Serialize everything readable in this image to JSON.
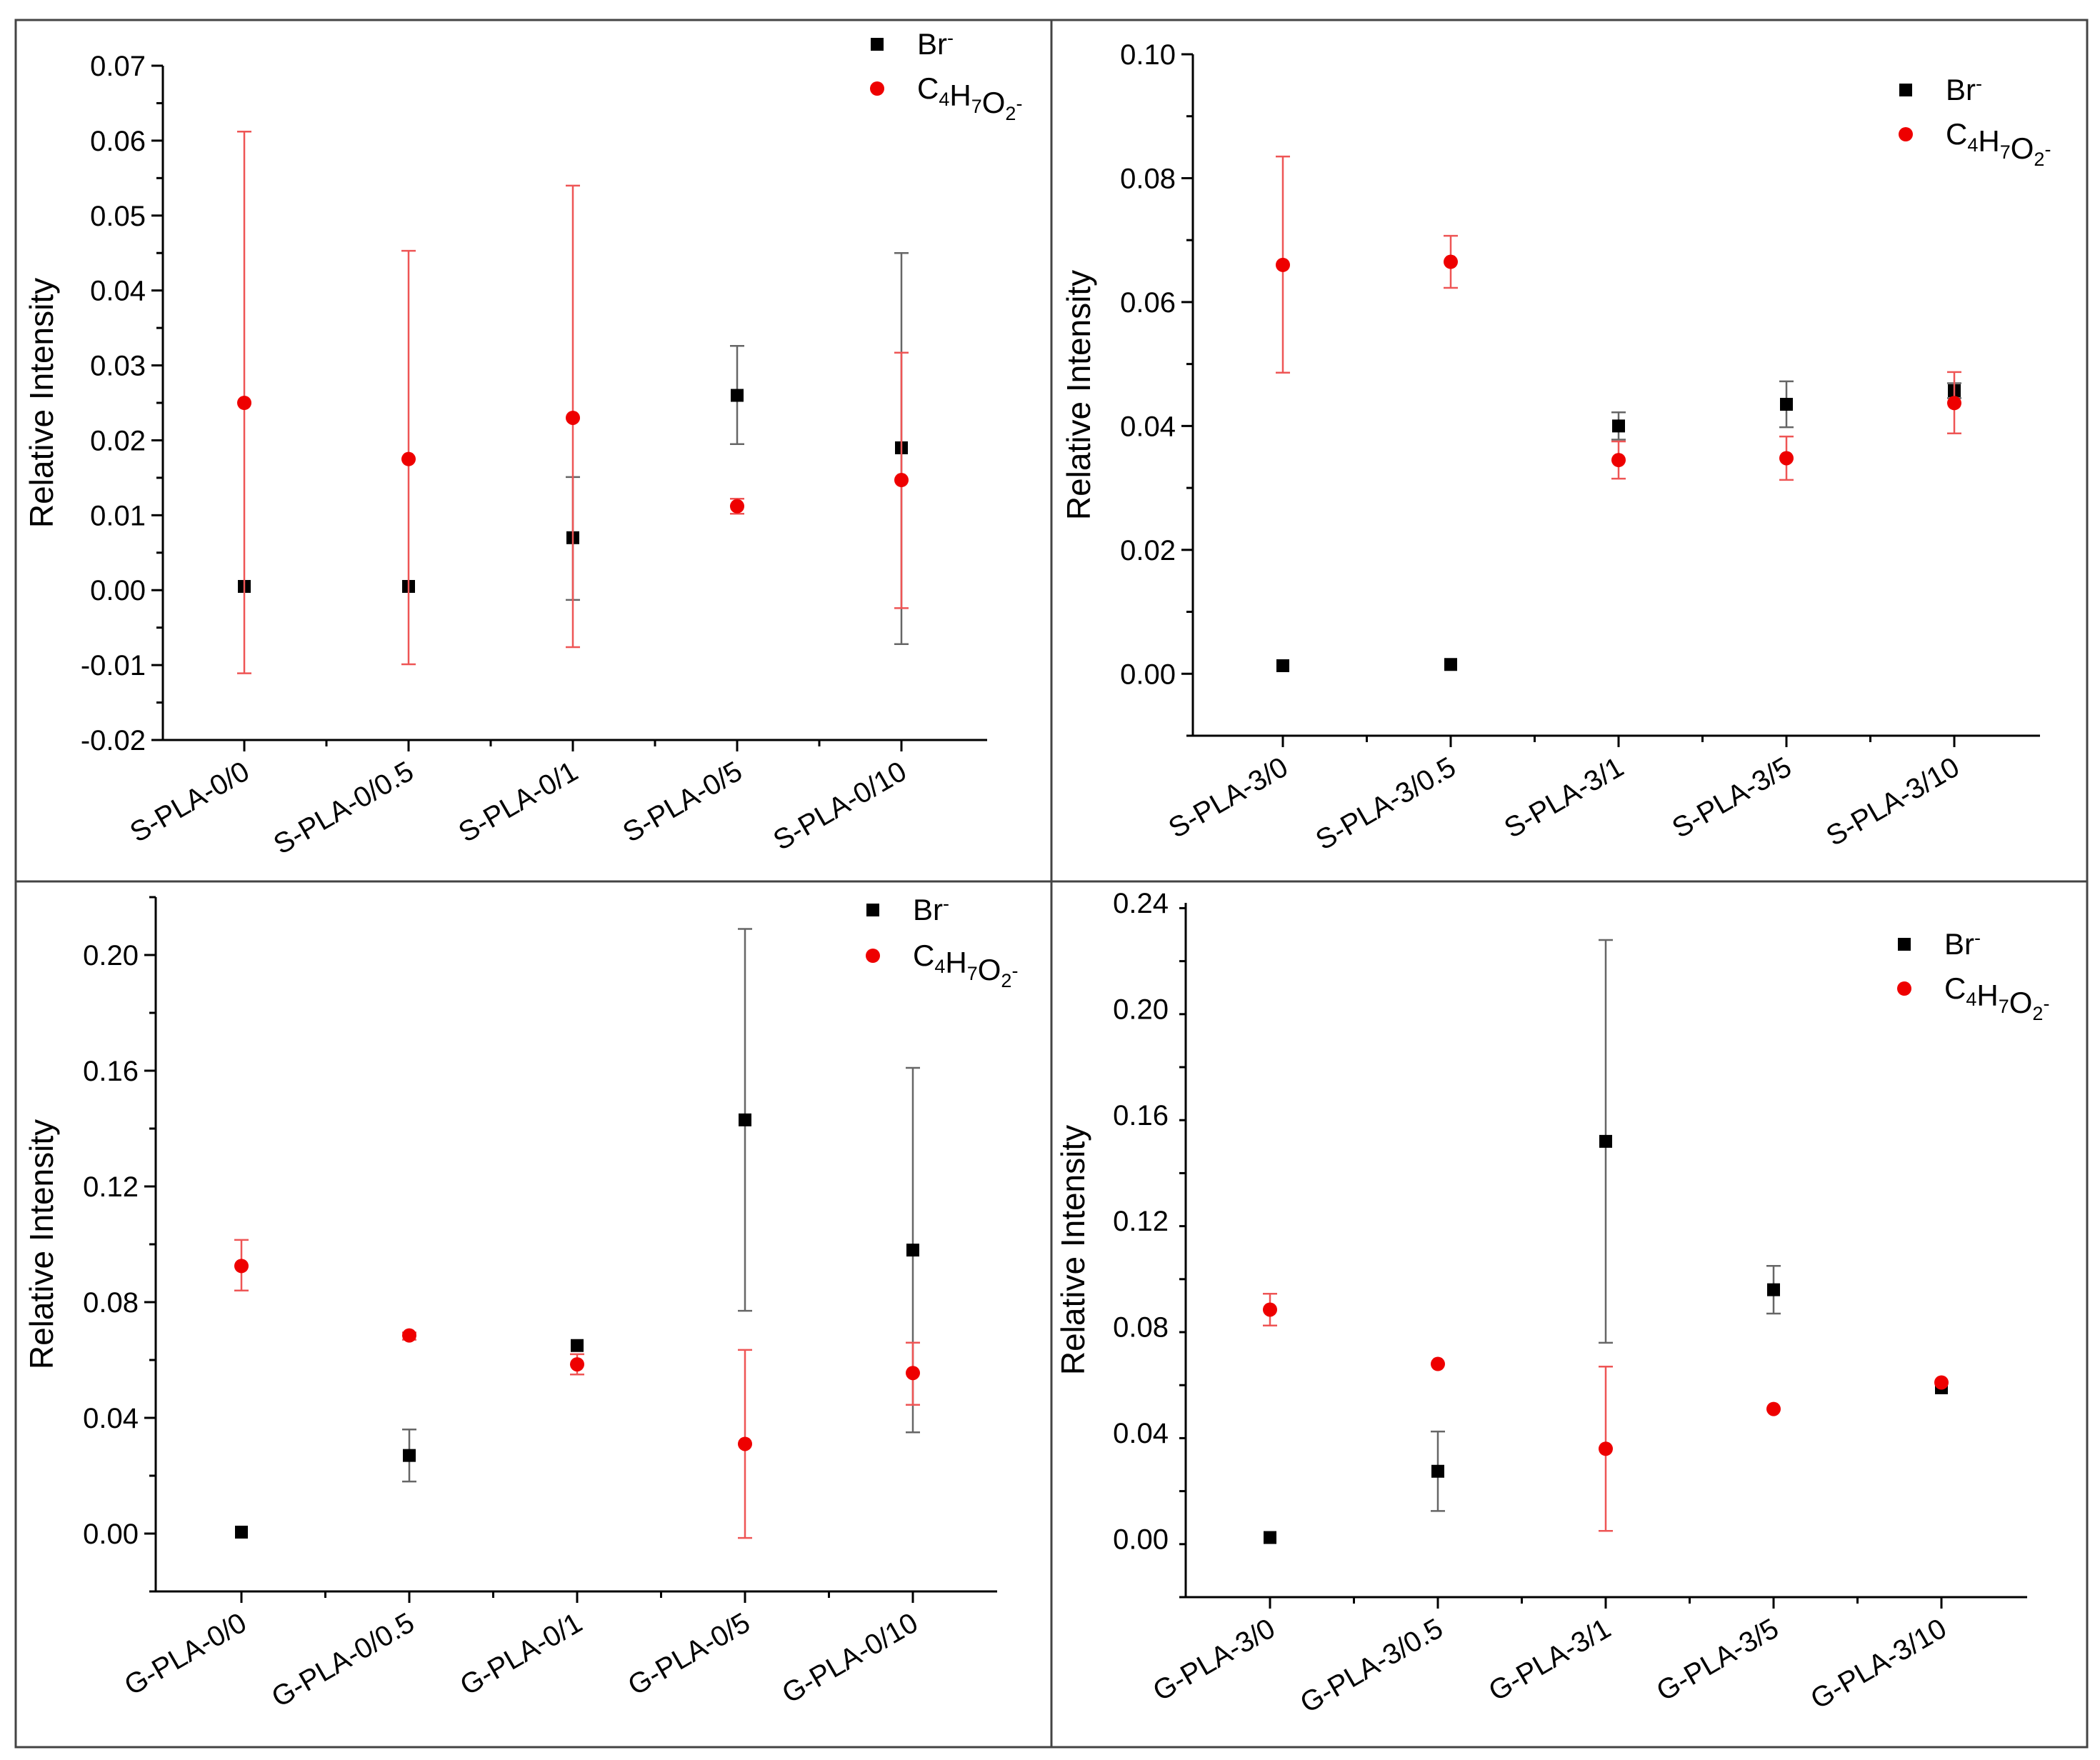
{
  "chart_data": [
    {
      "type": "scatter",
      "title": "",
      "xlabel": "",
      "ylabel": "Relative Intensity",
      "ylim": [
        -0.02,
        0.07
      ],
      "yticks": [
        -0.02,
        -0.01,
        0.0,
        0.01,
        0.02,
        0.03,
        0.04,
        0.05,
        0.06,
        0.07
      ],
      "tick_labels": [
        "-0.02",
        "-0.01",
        "0.00",
        "0.01",
        "0.02",
        "0.03",
        "0.04",
        "0.05",
        "0.06",
        "0.07"
      ],
      "categories": [
        "S-PLA-0/0",
        "S-PLA-0/0.5",
        "S-PLA-0/1",
        "S-PLA-0/5",
        "S-PLA-0/10"
      ],
      "legend_position": "top-right",
      "series": [
        {
          "name": "Br-",
          "legend": {
            "base": "Br",
            "parts": [
              {
                "t": "-",
                "s": "sup"
              }
            ]
          },
          "marker": "square",
          "color": "#000000",
          "errcolor": "#666666",
          "values": [
            0.0005,
            0.0005,
            0.007,
            0.026,
            0.019
          ],
          "err_low": [
            0.0,
            0.0,
            -0.0013,
            0.0195,
            -0.0072
          ],
          "err_high": [
            0.0,
            0.0,
            0.0151,
            0.0326,
            0.045
          ]
        },
        {
          "name": "C4H7O2-",
          "legend": {
            "base": "C",
            "parts": [
              {
                "t": "4",
                "s": "sub"
              },
              {
                "t": "H",
                "s": ""
              },
              {
                "t": "7",
                "s": "sub"
              },
              {
                "t": "O",
                "s": ""
              },
              {
                "t": "2",
                "s": "sub"
              },
              {
                "t": "-",
                "s": "sup"
              }
            ]
          },
          "marker": "circle",
          "color": "#ee0000",
          "errcolor": "#ee5555",
          "values": [
            0.025,
            0.0175,
            0.023,
            0.0112,
            0.0147
          ],
          "err_low": [
            -0.0111,
            -0.0099,
            -0.0076,
            0.0102,
            -0.0024
          ],
          "err_high": [
            0.0612,
            0.0453,
            0.054,
            0.0122,
            0.0317
          ]
        }
      ]
    },
    {
      "type": "scatter",
      "title": "",
      "xlabel": "",
      "ylabel": "Relative Intensity",
      "ylim": [
        -0.01,
        0.1
      ],
      "yticks": [
        0.0,
        0.02,
        0.04,
        0.06,
        0.08,
        0.1
      ],
      "tick_labels": [
        "0.00",
        "0.02",
        "0.04",
        "0.06",
        "0.08",
        "0.10"
      ],
      "categories": [
        "S-PLA-3/0",
        "S-PLA-3/0.5",
        "S-PLA-3/1",
        "S-PLA-3/5",
        "S-PLA-3/10"
      ],
      "legend_position": "top-right",
      "series": [
        {
          "name": "Br-",
          "legend": {
            "base": "Br",
            "parts": [
              {
                "t": "-",
                "s": "sup"
              }
            ]
          },
          "marker": "square",
          "color": "#000000",
          "errcolor": "#666666",
          "values": [
            0.0013,
            0.0015,
            0.04,
            0.0435,
            0.0457
          ],
          "err_low": [
            0.0013,
            0.0015,
            0.0378,
            0.0398,
            0.0445
          ],
          "err_high": [
            0.0013,
            0.0015,
            0.0422,
            0.0472,
            0.0469
          ]
        },
        {
          "name": "C4H7O2-",
          "legend": {
            "base": "C",
            "parts": [
              {
                "t": "4",
                "s": "sub"
              },
              {
                "t": "H",
                "s": ""
              },
              {
                "t": "7",
                "s": "sub"
              },
              {
                "t": "O",
                "s": ""
              },
              {
                "t": "2",
                "s": "sub"
              },
              {
                "t": "-",
                "s": "sup"
              }
            ]
          },
          "marker": "circle",
          "color": "#ee0000",
          "errcolor": "#ee5555",
          "values": [
            0.066,
            0.0665,
            0.0345,
            0.0348,
            0.0437
          ],
          "err_low": [
            0.0486,
            0.0623,
            0.0315,
            0.0313,
            0.0388
          ],
          "err_high": [
            0.0835,
            0.0707,
            0.0375,
            0.0383,
            0.0487
          ]
        }
      ]
    },
    {
      "type": "scatter",
      "title": "",
      "xlabel": "",
      "ylabel": "Relative Intensity",
      "ylim": [
        -0.02,
        0.22
      ],
      "yticks": [
        0.0,
        0.04,
        0.08,
        0.12,
        0.16,
        0.2
      ],
      "tick_labels": [
        "0.00",
        "0.04",
        "0.08",
        "0.12",
        "0.16",
        "0.20"
      ],
      "categories": [
        "G-PLA-0/0",
        "G-PLA-0/0.5",
        "G-PLA-0/1",
        "G-PLA-0/5",
        "G-PLA-0/10"
      ],
      "legend_position": "top-right",
      "series": [
        {
          "name": "Br-",
          "legend": {
            "base": "Br",
            "parts": [
              {
                "t": "-",
                "s": "sup"
              }
            ]
          },
          "marker": "square",
          "color": "#000000",
          "errcolor": "#666666",
          "values": [
            0.0005,
            0.027,
            0.065,
            0.143,
            0.098
          ],
          "err_low": [
            0.0005,
            0.018,
            0.065,
            0.077,
            0.035
          ],
          "err_high": [
            0.0005,
            0.036,
            0.065,
            0.209,
            0.161
          ]
        },
        {
          "name": "C4H7O2-",
          "legend": {
            "base": "C",
            "parts": [
              {
                "t": "4",
                "s": "sub"
              },
              {
                "t": "H",
                "s": ""
              },
              {
                "t": "7",
                "s": "sub"
              },
              {
                "t": "O",
                "s": ""
              },
              {
                "t": "2",
                "s": "sub"
              },
              {
                "t": "-",
                "s": "sup"
              }
            ]
          },
          "marker": "circle",
          "color": "#ee0000",
          "errcolor": "#ee5555",
          "values": [
            0.0925,
            0.0685,
            0.0585,
            0.031,
            0.0555
          ],
          "err_low": [
            0.084,
            0.067,
            0.055,
            -0.0015,
            0.0445
          ],
          "err_high": [
            0.1015,
            0.0695,
            0.062,
            0.0635,
            0.066
          ]
        }
      ]
    },
    {
      "type": "scatter",
      "title": "",
      "xlabel": "",
      "ylabel": "Relative Intensity",
      "ylim": [
        -0.022,
        0.24
      ],
      "yticks": [
        0.0,
        0.04,
        0.08,
        0.12,
        0.16,
        0.2,
        0.24
      ],
      "tick_labels": [
        "0.00",
        "0.04",
        "0.08",
        "0.12",
        "0.16",
        "0.20",
        "0.24"
      ],
      "categories": [
        "G-PLA-3/0",
        "G-PLA-3/0.5",
        "G-PLA-3/1",
        "G-PLA-3/5",
        "G-PLA-3/10"
      ],
      "legend_position": "top-right",
      "series": [
        {
          "name": "Br-",
          "legend": {
            "base": "Br",
            "parts": [
              {
                "t": "-",
                "s": "sup"
              }
            ]
          },
          "marker": "square",
          "color": "#000000",
          "errcolor": "#666666",
          "values": [
            0.0005,
            0.0255,
            0.15,
            0.094,
            0.057
          ],
          "err_low": [
            0.0005,
            0.0105,
            0.074,
            0.085,
            0.057
          ],
          "err_high": [
            0.0005,
            0.0405,
            0.226,
            0.103,
            0.057
          ]
        },
        {
          "name": "C4H7O2-",
          "legend": {
            "base": "C",
            "parts": [
              {
                "t": "4",
                "s": "sub"
              },
              {
                "t": "H",
                "s": ""
              },
              {
                "t": "7",
                "s": "sub"
              },
              {
                "t": "O",
                "s": ""
              },
              {
                "t": "2",
                "s": "sub"
              },
              {
                "t": "-",
                "s": "sup"
              }
            ]
          },
          "marker": "circle",
          "color": "#ee0000",
          "errcolor": "#ee5555",
          "values": [
            0.0865,
            0.066,
            0.034,
            0.049,
            0.059
          ],
          "err_low": [
            0.0805,
            0.066,
            0.003,
            0.049,
            0.059
          ],
          "err_high": [
            0.0925,
            0.066,
            0.065,
            0.049,
            0.059
          ]
        }
      ]
    }
  ]
}
